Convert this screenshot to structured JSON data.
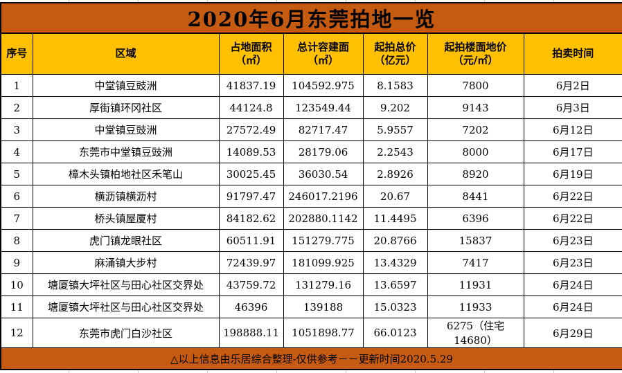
{
  "title": "2020年6月东莞拍地一览",
  "header": {
    "columns": [
      {
        "label": "序号",
        "unit": ""
      },
      {
        "label": "区域",
        "unit": ""
      },
      {
        "label": "占地面积",
        "unit": "（㎡）"
      },
      {
        "label": "总计容建面",
        "unit": "（㎡）"
      },
      {
        "label": "起拍总价",
        "unit": "（亿元）"
      },
      {
        "label": "起拍楼面地价",
        "unit": "（元/㎡）"
      },
      {
        "label": "拍卖时间",
        "unit": ""
      }
    ]
  },
  "footnote": "△以上信息由乐居综合整理-仅供参考－－更新时间2020.5.29",
  "colors": {
    "title_bg": "#C55A11",
    "header_bg": "#FFC000",
    "row_bg": "#FFFFFF",
    "border": "#000000",
    "text": "#000000"
  },
  "chart_data": {
    "type": "table",
    "title": "2020年6月东莞拍地一览",
    "columns": [
      "序号",
      "区域",
      "占地面积（㎡）",
      "总计容建面（㎡）",
      "起拍总价（亿元）",
      "起拍楼面地价（元/㎡）",
      "拍卖时间"
    ],
    "rows": [
      [
        "1",
        "中堂镇豆豉洲",
        "41837.19",
        "104592.975",
        "8.1583",
        "7800",
        "6月2日"
      ],
      [
        "2",
        "厚街镇环冈社区",
        "44124.8",
        "123549.44",
        "9.202",
        "9143",
        "6月3日"
      ],
      [
        "3",
        "中堂镇豆豉洲",
        "27572.49",
        "82717.47",
        "5.9557",
        "7202",
        "6月12日"
      ],
      [
        "4",
        "东莞市中堂镇豆豉洲",
        "14089.53",
        "28179.06",
        "2.2543",
        "8000",
        "6月17日"
      ],
      [
        "5",
        "樟木头镇柏地社区禾笔山",
        "30025.45",
        "36030.54",
        "2.8926",
        "8920",
        "6月19日"
      ],
      [
        "6",
        "横沥镇横沥村",
        "91797.47",
        "246017.2196",
        "20.67",
        "8441",
        "6月22日"
      ],
      [
        "7",
        "桥头镇屋厦村",
        "84182.62",
        "202880.1142",
        "11.4495",
        "6396",
        "6月22日"
      ],
      [
        "8",
        "虎门镇龙眼社区",
        "60511.91",
        "151279.775",
        "20.8766",
        "15837",
        "6月23日"
      ],
      [
        "9",
        "麻涌镇大步村",
        "72439.97",
        "181099.925",
        "13.4329",
        "7417",
        "6月23日"
      ],
      [
        "10",
        "塘厦镇大坪社区与田心社区交界处",
        "43759.72",
        "131279.16",
        "13.6597",
        "11931",
        "6月24日"
      ],
      [
        "11",
        "塘厦镇大坪社区与田心社区交界处",
        "46396",
        "139188",
        "15.0323",
        "11933",
        "6月24日"
      ],
      [
        "12",
        "东莞市虎门白沙社区",
        "198888.11",
        "1051898.77",
        "66.0123",
        "6275（住宅14680）",
        "6月29日"
      ]
    ]
  }
}
